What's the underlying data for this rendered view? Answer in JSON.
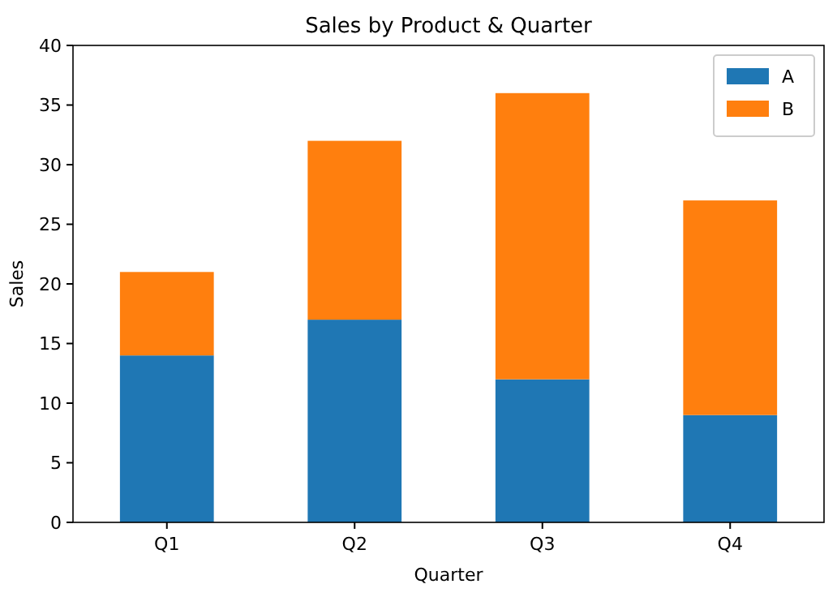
{
  "chart_data": {
    "type": "bar",
    "title": "Sales by Product & Quarter",
    "xlabel": "Quarter",
    "ylabel": "Sales",
    "categories": [
      "Q1",
      "Q2",
      "Q3",
      "Q4"
    ],
    "stacked": true,
    "series": [
      {
        "name": "A",
        "color": "#1f77b4",
        "values": [
          14,
          17,
          12,
          9
        ]
      },
      {
        "name": "B",
        "color": "#ff7f0e",
        "values": [
          7,
          15,
          24,
          18
        ]
      }
    ],
    "ylim": [
      0,
      40
    ],
    "yticks": [
      0,
      5,
      10,
      15,
      20,
      25,
      30,
      35,
      40
    ],
    "grid": false,
    "legend": "top right"
  }
}
